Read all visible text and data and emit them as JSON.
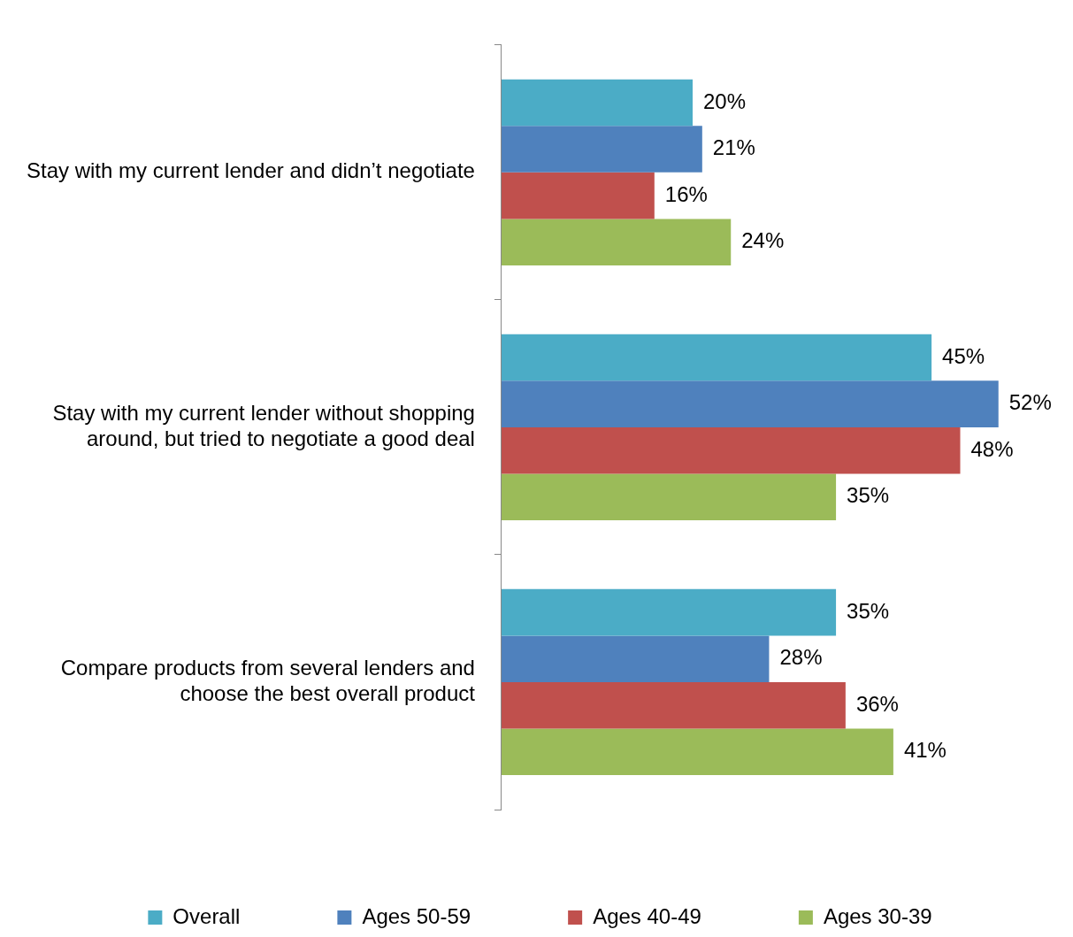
{
  "chart_data": {
    "type": "bar",
    "orientation": "horizontal",
    "categories": [
      "Stay with my current lender and didn’t negotiate",
      "Stay with my current lender without shopping around, but tried to negotiate a good deal",
      "Compare products from several lenders and choose the best overall product"
    ],
    "series": [
      {
        "name": "Overall",
        "color": "#4bacc6",
        "values": [
          20,
          45,
          35
        ],
        "value_labels": [
          "20%",
          "45%",
          "35%"
        ]
      },
      {
        "name": "Ages 50-59",
        "color": "#4f81bd",
        "values": [
          21,
          52,
          28
        ],
        "value_labels": [
          "21%",
          "52%",
          "28%"
        ]
      },
      {
        "name": "Ages 40-49",
        "color": "#c0504d",
        "values": [
          16,
          48,
          36
        ],
        "value_labels": [
          "16%",
          "48%",
          "36%"
        ]
      },
      {
        "name": "Ages 30-39",
        "color": "#9bbb59",
        "values": [
          24,
          35,
          41
        ],
        "value_labels": [
          "24%",
          "35%",
          "41%"
        ]
      }
    ],
    "legend": "bottom"
  }
}
